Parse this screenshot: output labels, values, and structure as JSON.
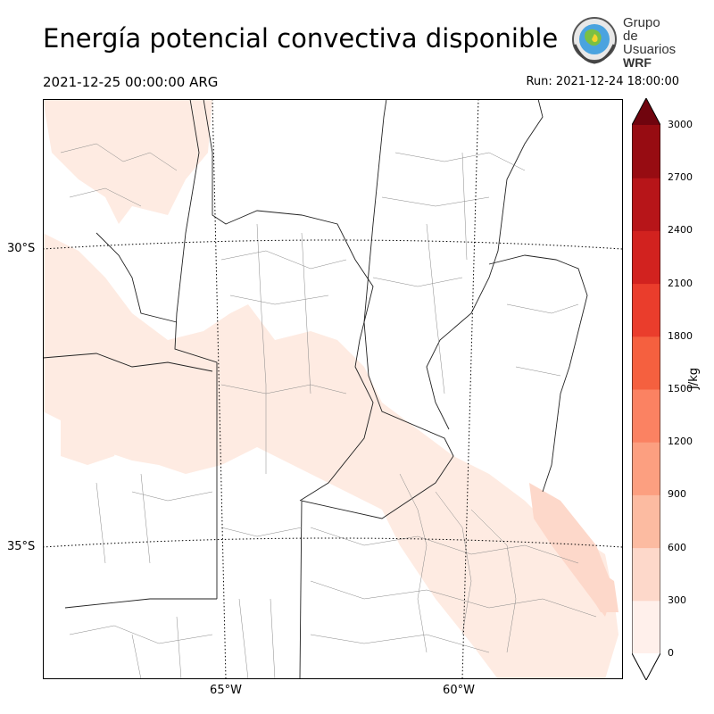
{
  "header": {
    "title": "Energía potencial convectiva disponible",
    "valid_time": "2021-12-25 00:00:00 ARG",
    "run_time": "Run: 2021-12-24 18:00:00"
  },
  "logo": {
    "line1": "Grupo de",
    "line2": "Usuarios",
    "line3": "WRF"
  },
  "map": {
    "latitude_labels": [
      "30°S",
      "35°S"
    ],
    "longitude_labels": [
      "65°W",
      "60°W"
    ]
  },
  "colorbar": {
    "unit": "J/kg",
    "ticks": [
      "0",
      "300",
      "600",
      "900",
      "1200",
      "1500",
      "1800",
      "2100",
      "2400",
      "2700",
      "3000"
    ],
    "colors": [
      "#fff0eb",
      "#fdd8ca",
      "#fcbba1",
      "#fc9f80",
      "#fb8262",
      "#f5603f",
      "#ea3d2c",
      "#d2221f",
      "#b71519",
      "#970c12",
      "#70040e"
    ],
    "extend": "both"
  }
}
